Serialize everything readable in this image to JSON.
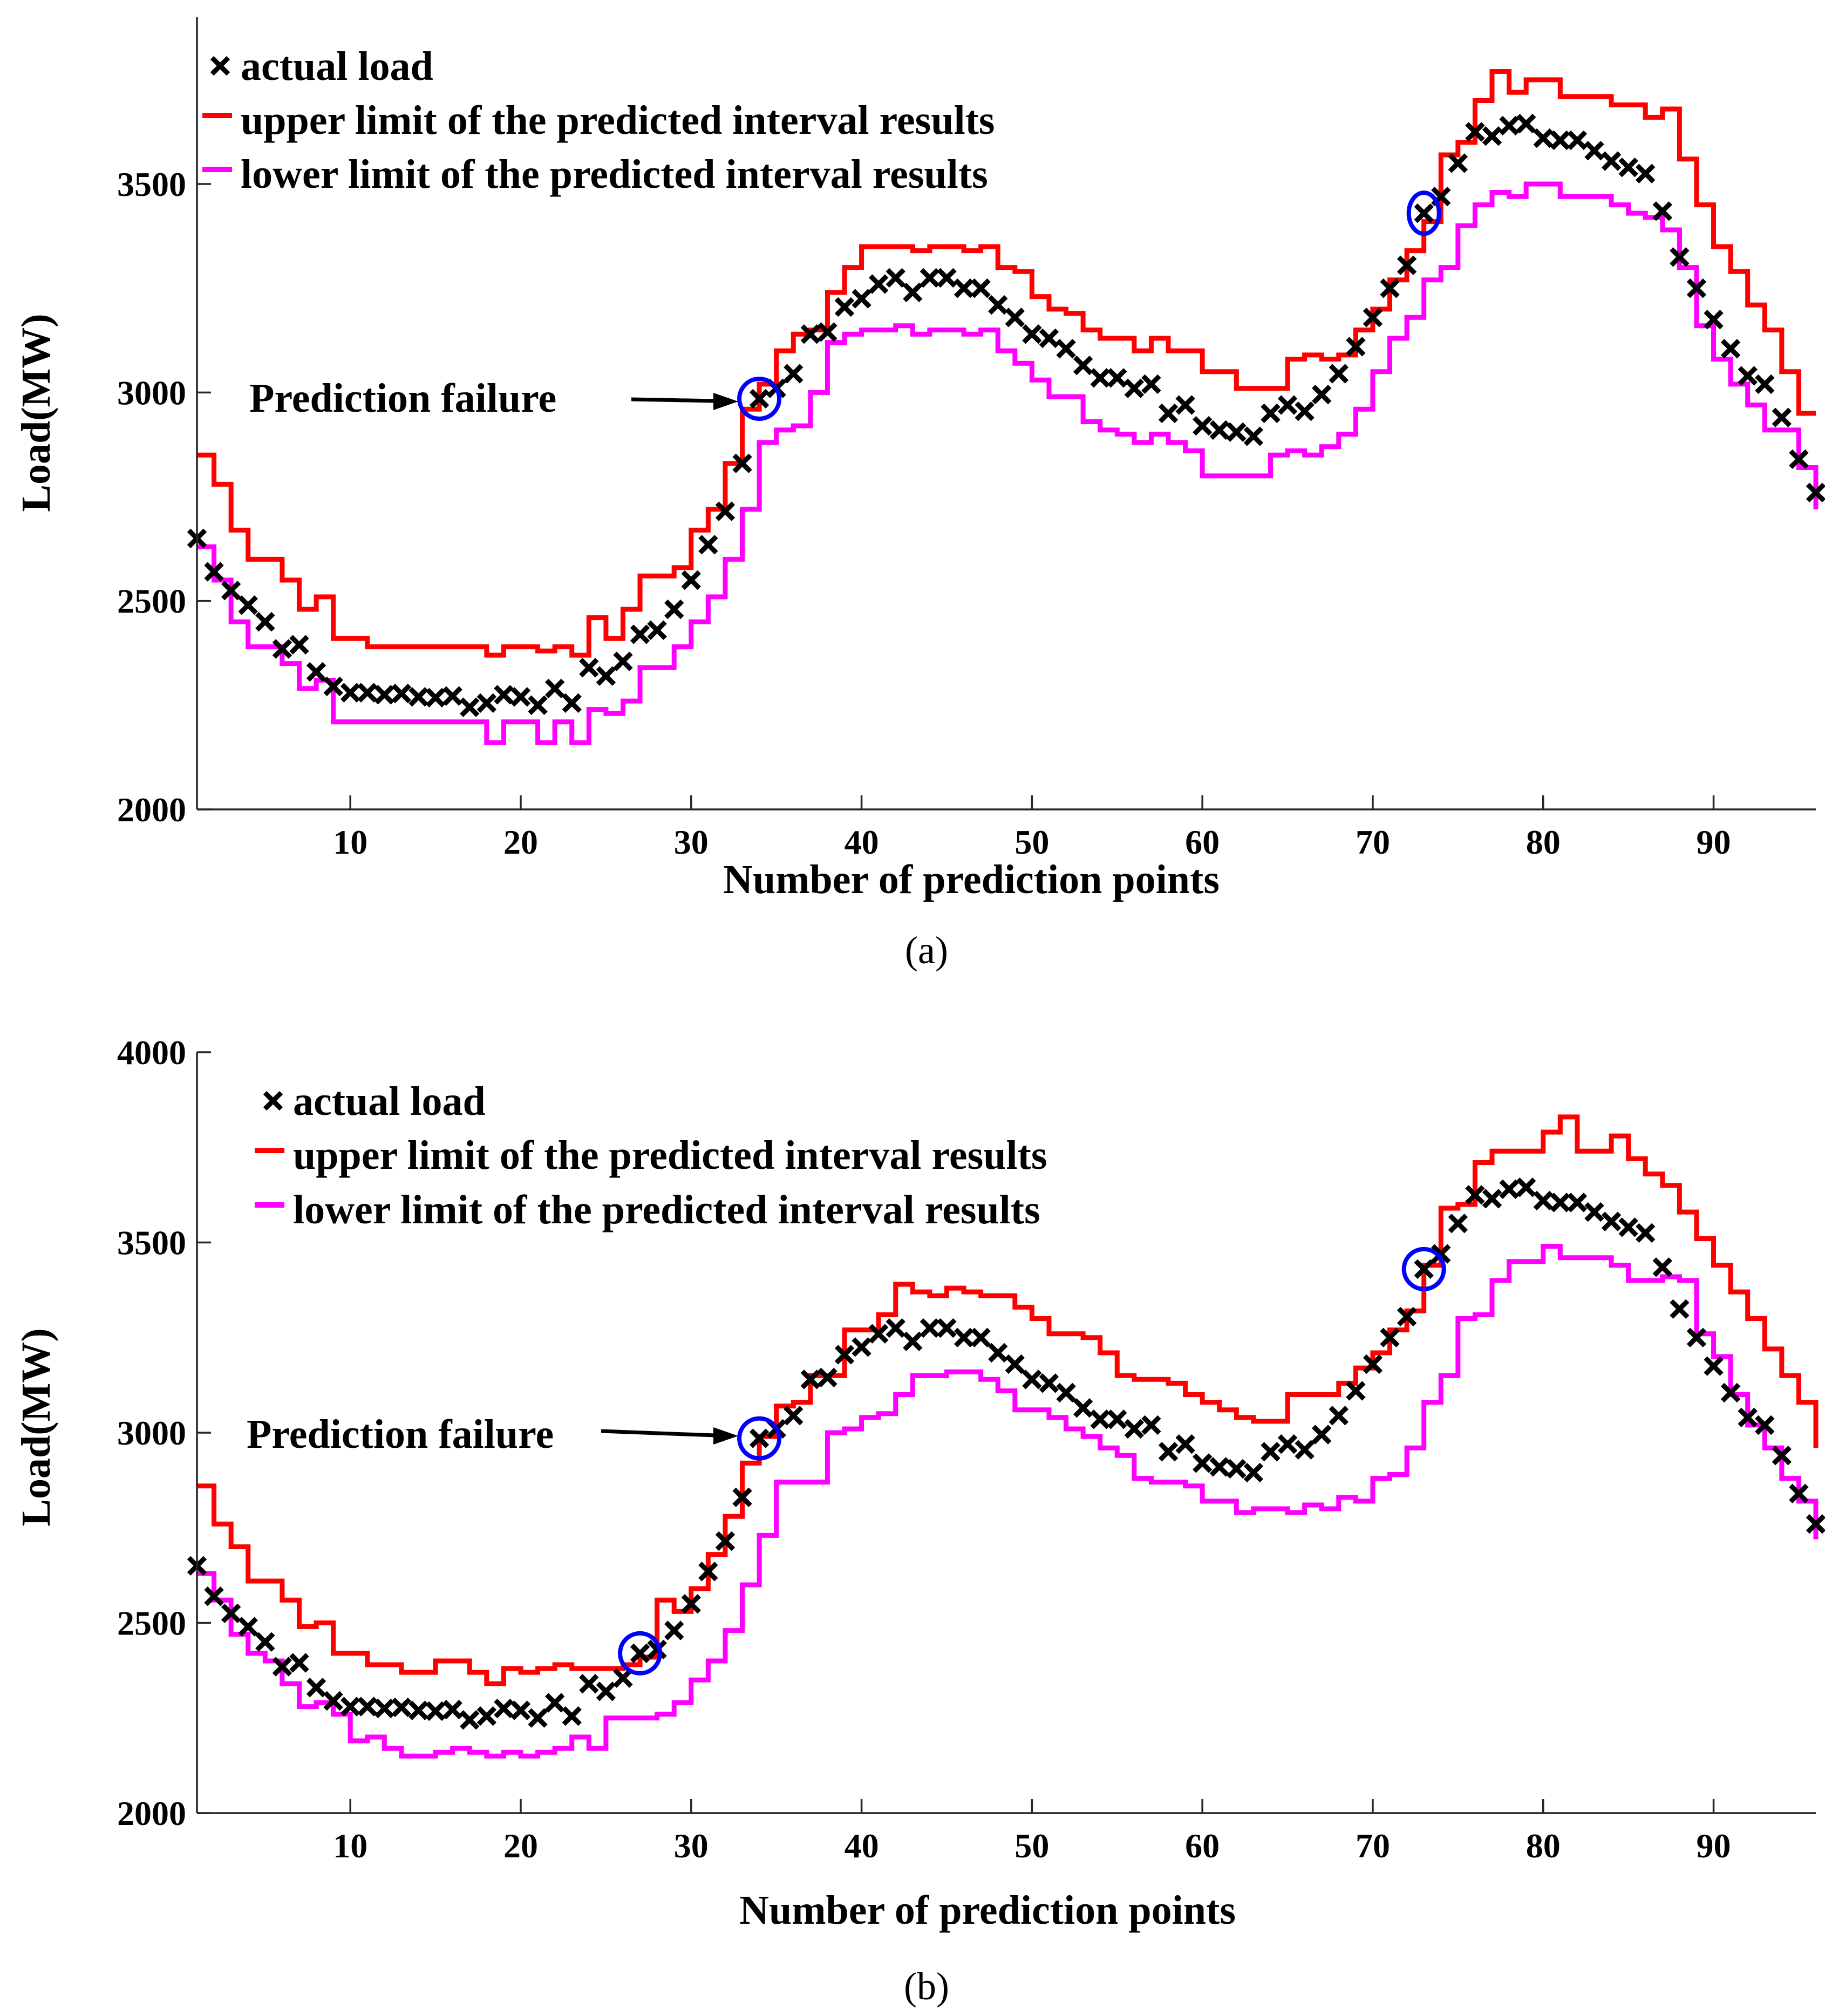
{
  "colors": {
    "actual": "#000000",
    "upper": "#ff0000",
    "lower": "#ff00ff",
    "circle": "#0000ff",
    "axis": "#262626"
  },
  "chart_data": [
    {
      "id": "a",
      "type": "line",
      "caption": "(a)",
      "xlabel": "Number of prediction points",
      "ylabel": "Load(MW)",
      "xlim": [
        1,
        96
      ],
      "ylim": [
        2000,
        3900
      ],
      "xticks": [
        10,
        20,
        30,
        40,
        50,
        60,
        70,
        80,
        90
      ],
      "yticks": [
        2000,
        2500,
        3000,
        3500
      ],
      "xtick_labels": [
        "10",
        "20",
        "30",
        "40",
        "50",
        "60",
        "70",
        "80",
        "90"
      ],
      "ytick_labels": [
        "2000",
        "2500",
        "3000",
        "3500"
      ],
      "legend": {
        "position": "top-left",
        "entries": [
          "actual load",
          "upper limit of the predicted interval results",
          "lower limit of the predicted interval results"
        ]
      },
      "annotation": {
        "text": "Prediction failure",
        "target_x": 34,
        "target_y": 2985
      },
      "failure_points": [
        34,
        73
      ],
      "series": [
        {
          "name": "actual load",
          "style": "markers-x",
          "values": [
            2650,
            2570,
            2525,
            2490,
            2450,
            2385,
            2395,
            2330,
            2295,
            2280,
            2280,
            2275,
            2278,
            2270,
            2268,
            2272,
            2245,
            2255,
            2275,
            2270,
            2250,
            2290,
            2255,
            2340,
            2320,
            2355,
            2420,
            2430,
            2480,
            2550,
            2635,
            2715,
            2830,
            2985,
            3010,
            3045,
            3140,
            3145,
            3205,
            3225,
            3260,
            3275,
            3240,
            3275,
            3275,
            3250,
            3250,
            3210,
            3180,
            3140,
            3130,
            3105,
            3065,
            3035,
            3035,
            3010,
            3020,
            2950,
            2970,
            2920,
            2910,
            2905,
            2895,
            2950,
            2970,
            2955,
            2995,
            3045,
            3110,
            3180,
            3250,
            3305,
            3430,
            3470,
            3550,
            3625,
            3615,
            3640,
            3645,
            3610,
            3605,
            3605,
            3580,
            3555,
            3540,
            3525,
            3435,
            3325,
            3250,
            3175,
            3105,
            3040,
            3020,
            2940,
            2840,
            2760
          ]
        },
        {
          "name": "upper limit of the predicted interval results",
          "style": "step",
          "values": [
            2850,
            2780,
            2670,
            2600,
            2600,
            2550,
            2480,
            2510,
            2410,
            2410,
            2390,
            2390,
            2390,
            2390,
            2390,
            2390,
            2390,
            2370,
            2390,
            2390,
            2380,
            2390,
            2370,
            2460,
            2410,
            2480,
            2560,
            2560,
            2580,
            2670,
            2720,
            2830,
            2960,
            3020,
            3100,
            3140,
            3150,
            3240,
            3300,
            3350,
            3350,
            3350,
            3340,
            3350,
            3350,
            3340,
            3350,
            3300,
            3290,
            3230,
            3200,
            3190,
            3150,
            3130,
            3130,
            3100,
            3130,
            3100,
            3100,
            3050,
            3050,
            3010,
            3010,
            3010,
            3080,
            3090,
            3080,
            3090,
            3150,
            3200,
            3270,
            3340,
            3410,
            3570,
            3600,
            3700,
            3770,
            3720,
            3750,
            3750,
            3710,
            3710,
            3710,
            3690,
            3690,
            3660,
            3680,
            3560,
            3450,
            3350,
            3290,
            3210,
            3150,
            3050,
            2950,
            2950
          ]
        },
        {
          "name": "lower limit of the predicted interval results",
          "style": "step",
          "values": [
            2630,
            2550,
            2450,
            2390,
            2390,
            2350,
            2290,
            2310,
            2210,
            2210,
            2210,
            2210,
            2210,
            2210,
            2210,
            2210,
            2210,
            2160,
            2210,
            2210,
            2160,
            2210,
            2160,
            2240,
            2230,
            2260,
            2340,
            2340,
            2390,
            2450,
            2510,
            2600,
            2720,
            2880,
            2910,
            2920,
            3000,
            3120,
            3140,
            3150,
            3150,
            3160,
            3140,
            3150,
            3150,
            3140,
            3150,
            3100,
            3070,
            3030,
            2990,
            2990,
            2930,
            2910,
            2900,
            2880,
            2900,
            2880,
            2860,
            2800,
            2800,
            2800,
            2800,
            2850,
            2860,
            2850,
            2870,
            2900,
            2960,
            3050,
            3130,
            3180,
            3270,
            3300,
            3400,
            3450,
            3480,
            3470,
            3500,
            3500,
            3470,
            3470,
            3470,
            3450,
            3430,
            3420,
            3390,
            3300,
            3160,
            3080,
            3020,
            2970,
            2910,
            2910,
            2820,
            2720
          ]
        }
      ]
    },
    {
      "id": "b",
      "type": "line",
      "caption": "(b)",
      "xlabel": "Number of prediction points",
      "ylabel": "Load(MW)",
      "xlim": [
        1,
        96
      ],
      "ylim": [
        2000,
        4000
      ],
      "xticks": [
        10,
        20,
        30,
        40,
        50,
        60,
        70,
        80,
        90
      ],
      "yticks": [
        2000,
        2500,
        3000,
        3500,
        4000
      ],
      "xtick_labels": [
        "10",
        "20",
        "30",
        "40",
        "50",
        "60",
        "70",
        "80",
        "90"
      ],
      "ytick_labels": [
        "2000",
        "2500",
        "3000",
        "3500",
        "4000"
      ],
      "legend": {
        "position": "top-left",
        "entries": [
          "actual load",
          "upper limit of the predicted interval results",
          "lower limit of the predicted interval results"
        ]
      },
      "annotation": {
        "text": "Prediction failure",
        "target_x": 34,
        "target_y": 2985
      },
      "failure_points": [
        27,
        34,
        73
      ],
      "series": [
        {
          "name": "actual load",
          "style": "markers-x",
          "values": [
            2650,
            2570,
            2525,
            2490,
            2450,
            2385,
            2395,
            2330,
            2295,
            2280,
            2280,
            2275,
            2278,
            2270,
            2268,
            2272,
            2245,
            2255,
            2275,
            2270,
            2250,
            2290,
            2255,
            2340,
            2320,
            2355,
            2420,
            2430,
            2480,
            2550,
            2635,
            2715,
            2830,
            2985,
            3010,
            3045,
            3140,
            3145,
            3205,
            3225,
            3260,
            3275,
            3240,
            3275,
            3275,
            3250,
            3250,
            3210,
            3180,
            3140,
            3130,
            3105,
            3065,
            3035,
            3035,
            3010,
            3020,
            2950,
            2970,
            2920,
            2910,
            2905,
            2895,
            2950,
            2970,
            2955,
            2995,
            3045,
            3110,
            3180,
            3250,
            3305,
            3430,
            3470,
            3550,
            3625,
            3615,
            3640,
            3645,
            3610,
            3605,
            3605,
            3580,
            3555,
            3540,
            3525,
            3435,
            3325,
            3250,
            3175,
            3105,
            3040,
            3020,
            2940,
            2840,
            2760
          ]
        },
        {
          "name": "upper limit of the predicted interval results",
          "style": "step",
          "values": [
            2860,
            2760,
            2700,
            2610,
            2610,
            2560,
            2490,
            2500,
            2420,
            2420,
            2390,
            2390,
            2370,
            2370,
            2400,
            2400,
            2370,
            2340,
            2380,
            2370,
            2380,
            2390,
            2380,
            2380,
            2380,
            2390,
            2410,
            2560,
            2530,
            2590,
            2680,
            2780,
            2920,
            2990,
            3070,
            3080,
            3150,
            3150,
            3270,
            3270,
            3310,
            3390,
            3370,
            3360,
            3380,
            3370,
            3360,
            3360,
            3330,
            3300,
            3260,
            3260,
            3250,
            3210,
            3150,
            3140,
            3140,
            3130,
            3100,
            3080,
            3060,
            3040,
            3030,
            3030,
            3100,
            3100,
            3100,
            3130,
            3170,
            3210,
            3270,
            3320,
            3440,
            3590,
            3600,
            3710,
            3740,
            3740,
            3740,
            3790,
            3830,
            3740,
            3740,
            3780,
            3720,
            3680,
            3650,
            3580,
            3510,
            3440,
            3370,
            3300,
            3220,
            3150,
            3080,
            2960
          ]
        },
        {
          "name": "lower limit of the predicted interval results",
          "style": "step",
          "values": [
            2630,
            2560,
            2470,
            2420,
            2400,
            2340,
            2280,
            2290,
            2260,
            2190,
            2200,
            2170,
            2150,
            2150,
            2160,
            2170,
            2160,
            2150,
            2160,
            2150,
            2160,
            2170,
            2200,
            2170,
            2250,
            2250,
            2250,
            2260,
            2290,
            2350,
            2400,
            2480,
            2600,
            2730,
            2870,
            2870,
            2870,
            3000,
            3010,
            3040,
            3050,
            3100,
            3150,
            3150,
            3160,
            3160,
            3140,
            3110,
            3060,
            3060,
            3040,
            3010,
            2990,
            2960,
            2940,
            2880,
            2870,
            2870,
            2860,
            2820,
            2820,
            2790,
            2800,
            2800,
            2790,
            2810,
            2800,
            2830,
            2820,
            2880,
            2890,
            2960,
            3080,
            3150,
            3300,
            3310,
            3400,
            3450,
            3450,
            3490,
            3460,
            3460,
            3460,
            3440,
            3400,
            3400,
            3410,
            3400,
            3260,
            3200,
            3100,
            3020,
            2960,
            2880,
            2820,
            2720
          ]
        }
      ]
    }
  ]
}
